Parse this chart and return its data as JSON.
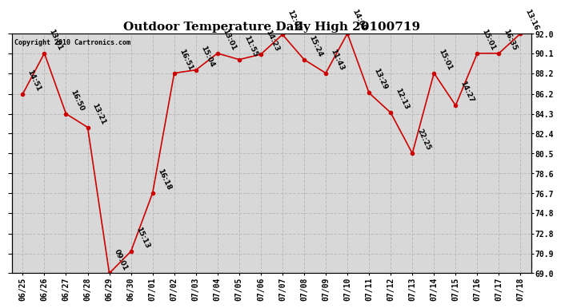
{
  "title": "Outdoor Temperature Daily High 20100719",
  "copyright": "Copyright 2010 Cartronics.com",
  "dates": [
    "06/25",
    "06/26",
    "06/27",
    "06/28",
    "06/29",
    "06/30",
    "07/01",
    "07/02",
    "07/03",
    "07/04",
    "07/05",
    "07/06",
    "07/07",
    "07/08",
    "07/09",
    "07/10",
    "07/11",
    "07/12",
    "07/13",
    "07/14",
    "07/15",
    "07/16",
    "07/17",
    "07/18"
  ],
  "values": [
    86.2,
    90.1,
    84.3,
    83.0,
    69.0,
    71.1,
    76.7,
    88.2,
    88.5,
    90.1,
    89.5,
    90.0,
    91.9,
    89.5,
    88.2,
    92.0,
    86.3,
    84.4,
    80.5,
    88.2,
    85.1,
    90.1,
    90.1,
    92.0
  ],
  "time_labels": [
    "14:51",
    "13:01",
    "16:50",
    "13:21",
    "09:01",
    "15:13",
    "16:18",
    "16:51",
    "15:04",
    "13:01",
    "11:55",
    "14:23",
    "12:09",
    "15:24",
    "11:43",
    "14:09",
    "13:29",
    "12:13",
    "22:25",
    "15:01",
    "14:27",
    "15:01",
    "16:35",
    "13:16"
  ],
  "yticks": [
    69.0,
    70.9,
    72.8,
    74.8,
    76.7,
    78.6,
    80.5,
    82.4,
    84.3,
    86.2,
    88.2,
    90.1,
    92.0
  ],
  "ytick_labels": [
    "69.0",
    "70.9",
    "72.8",
    "74.8",
    "76.7",
    "78.6",
    "80.5",
    "82.4",
    "84.3",
    "86.2",
    "88.2",
    "90.1",
    "92.0"
  ],
  "ylim": [
    69.0,
    92.0
  ],
  "line_color": "#cc0000",
  "marker_color": "#cc0000",
  "bg_color": "#ffffff",
  "plot_bg_color": "#d8d8d8",
  "grid_color": "#bbbbbb",
  "title_fontsize": 11,
  "tick_fontsize": 7,
  "annotation_fontsize": 6.5
}
